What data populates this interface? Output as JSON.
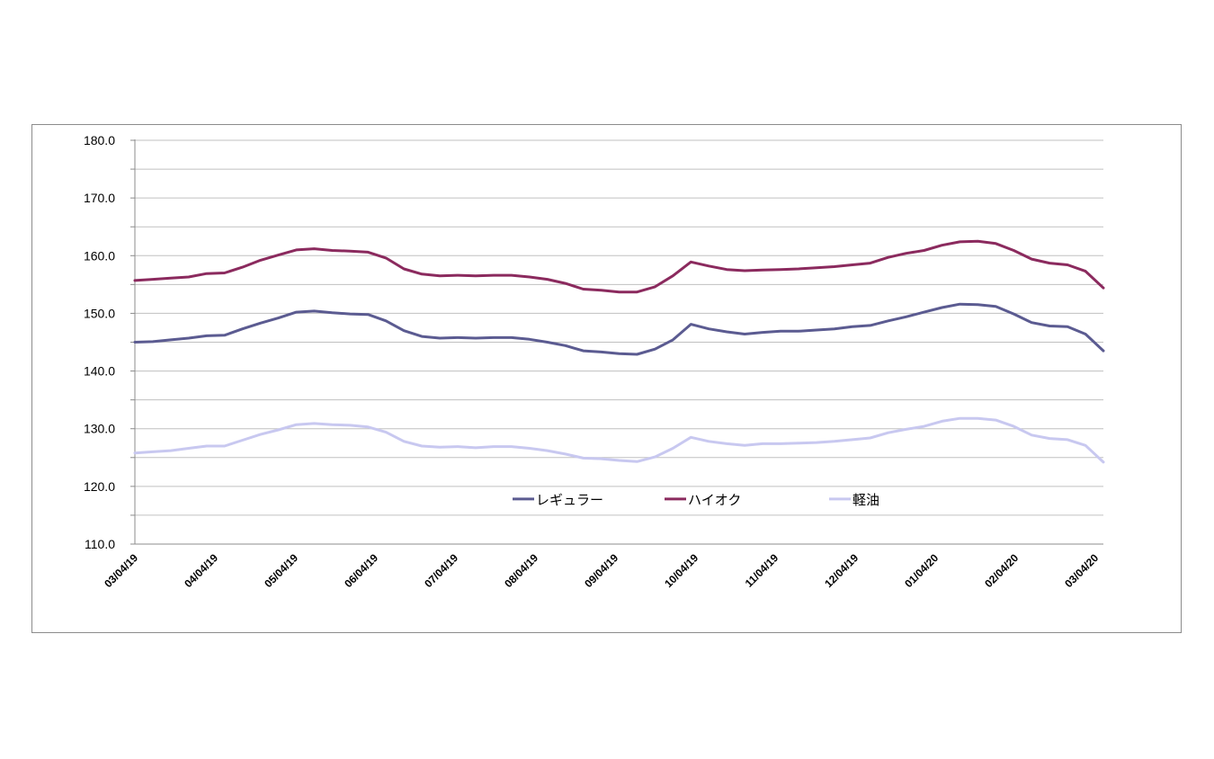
{
  "chart_data": {
    "type": "line",
    "title": "",
    "xlabel": "",
    "ylabel": "",
    "ylim": [
      110,
      180
    ],
    "y_ticks": [
      "110.0",
      "120.0",
      "130.0",
      "140.0",
      "150.0",
      "160.0",
      "170.0",
      "180.0"
    ],
    "x_tick_labels": [
      "03/04/19",
      "04/04/19",
      "05/04/19",
      "06/04/19",
      "07/04/19",
      "08/04/19",
      "09/04/19",
      "10/04/19",
      "11/04/19",
      "12/04/19",
      "01/04/20",
      "02/04/20",
      "03/04/20"
    ],
    "grid": true,
    "legend_position": "bottom-center (inside plot)",
    "series": [
      {
        "name": "レギュラー",
        "color": "#5b5b91",
        "values": [
          145.0,
          145.1,
          145.4,
          145.7,
          146.1,
          146.2,
          147.3,
          148.3,
          149.2,
          150.2,
          150.4,
          150.1,
          149.9,
          149.8,
          148.7,
          147.0,
          146.0,
          145.7,
          145.8,
          145.7,
          145.8,
          145.8,
          145.5,
          145.0,
          144.4,
          143.5,
          143.3,
          143.0,
          142.9,
          143.8,
          145.4,
          148.1,
          147.3,
          146.8,
          146.4,
          146.7,
          146.9,
          146.9,
          147.1,
          147.3,
          147.7,
          147.9,
          148.7,
          149.4,
          150.2,
          151.0,
          151.6,
          151.5,
          151.2,
          149.9,
          148.4,
          147.8,
          147.7,
          146.4,
          143.5
        ]
      },
      {
        "name": "ハイオク",
        "color": "#8b2a5e",
        "values": [
          155.7,
          155.9,
          156.1,
          156.3,
          156.9,
          157.0,
          158.0,
          159.2,
          160.1,
          161.0,
          161.2,
          160.9,
          160.8,
          160.6,
          159.6,
          157.7,
          156.8,
          156.5,
          156.6,
          156.5,
          156.6,
          156.6,
          156.3,
          155.9,
          155.2,
          154.2,
          154.0,
          153.7,
          153.7,
          154.6,
          156.5,
          158.9,
          158.2,
          157.6,
          157.4,
          157.5,
          157.6,
          157.7,
          157.9,
          158.1,
          158.4,
          158.7,
          159.7,
          160.4,
          160.9,
          161.8,
          162.4,
          162.5,
          162.1,
          160.9,
          159.4,
          158.7,
          158.4,
          157.3,
          154.4
        ]
      },
      {
        "name": "軽油",
        "color": "#c8c8f0",
        "values": [
          125.8,
          126.0,
          126.2,
          126.6,
          127.0,
          127.0,
          128.0,
          129.0,
          129.8,
          130.7,
          130.9,
          130.7,
          130.6,
          130.3,
          129.4,
          127.8,
          127.0,
          126.8,
          126.9,
          126.7,
          126.9,
          126.9,
          126.6,
          126.2,
          125.6,
          124.9,
          124.8,
          124.5,
          124.3,
          125.1,
          126.6,
          128.5,
          127.8,
          127.4,
          127.1,
          127.4,
          127.4,
          127.5,
          127.6,
          127.8,
          128.1,
          128.4,
          129.3,
          129.9,
          130.4,
          131.3,
          131.8,
          131.8,
          131.5,
          130.4,
          128.9,
          128.3,
          128.1,
          127.1,
          124.2
        ]
      }
    ]
  }
}
